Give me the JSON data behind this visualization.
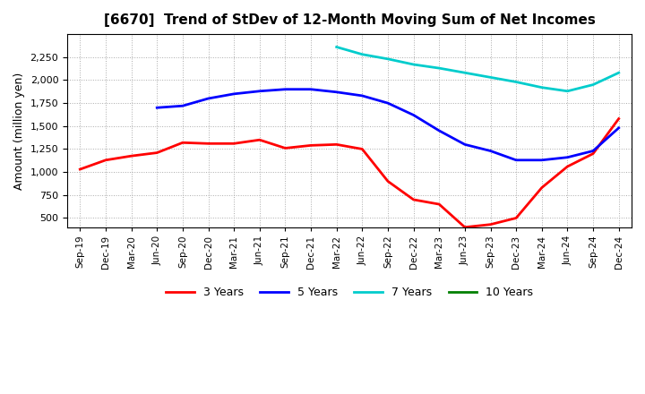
{
  "title": "[6670]  Trend of StDev of 12-Month Moving Sum of Net Incomes",
  "ylabel": "Amount (million yen)",
  "background_color": "#ffffff",
  "x_labels": [
    "Sep-19",
    "Dec-19",
    "Mar-20",
    "Jun-20",
    "Sep-20",
    "Dec-20",
    "Mar-21",
    "Jun-21",
    "Sep-21",
    "Dec-21",
    "Mar-22",
    "Jun-22",
    "Sep-22",
    "Dec-22",
    "Mar-23",
    "Jun-23",
    "Sep-23",
    "Dec-23",
    "Mar-24",
    "Jun-24",
    "Sep-24",
    "Dec-24"
  ],
  "ylim": [
    400,
    2500
  ],
  "yticks": [
    500,
    750,
    1000,
    1250,
    1500,
    1750,
    2000,
    2250
  ],
  "series": {
    "3 Years": {
      "color": "#ff0000",
      "values": [
        1030,
        1130,
        1175,
        1210,
        1320,
        1310,
        1310,
        1350,
        1260,
        1290,
        1300,
        1250,
        900,
        700,
        650,
        400,
        430,
        500,
        830,
        1060,
        1200,
        1580
      ]
    },
    "5 Years": {
      "color": "#0000ff",
      "values": [
        null,
        null,
        null,
        1700,
        1720,
        1800,
        1850,
        1880,
        1900,
        1900,
        1870,
        1830,
        1750,
        1620,
        1450,
        1300,
        1230,
        1130,
        1130,
        1160,
        1230,
        1480
      ]
    },
    "7 Years": {
      "color": "#00cccc",
      "values": [
        null,
        null,
        null,
        null,
        null,
        null,
        null,
        null,
        null,
        null,
        2360,
        2280,
        2230,
        2170,
        2130,
        2080,
        2030,
        1980,
        1920,
        1880,
        1950,
        2080
      ]
    },
    "10 Years": {
      "color": "#008000",
      "values": [
        null,
        null,
        null,
        null,
        null,
        null,
        null,
        null,
        null,
        null,
        null,
        null,
        null,
        null,
        null,
        null,
        null,
        null,
        null,
        null,
        null,
        null
      ]
    }
  },
  "legend_order": [
    "3 Years",
    "5 Years",
    "7 Years",
    "10 Years"
  ]
}
